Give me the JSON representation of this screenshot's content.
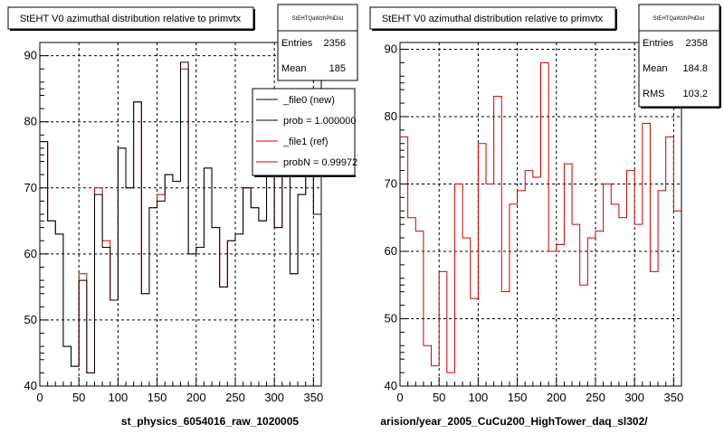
{
  "colors": {
    "histogram": "#cc0000",
    "reference": "#000000",
    "frame": "#000000",
    "background": "#ffffff"
  },
  "panels": [
    {
      "title": "StEHT V0 azimuthal distribution relative to primvtx",
      "footer": "st_physics_6054016_raw_1020005",
      "stats": {
        "name": "StEHTQaWzhPhiDist",
        "rows": [
          {
            "label": "Entries",
            "value": "2356"
          },
          {
            "label": "Mean",
            "value": "185"
          }
        ]
      },
      "legend": [
        {
          "label": "_file0 (new)",
          "color": "#000000"
        },
        {
          "label": "prob = 1.000000",
          "color": "#000000"
        },
        {
          "label": "_file1 (ref)",
          "color": "#cc0000"
        },
        {
          "label": "probN = 0.99972",
          "color": "#cc0000"
        }
      ]
    },
    {
      "title": "StEHT V0 azimuthal distribution relative to primvtx",
      "footer": "arision/year_2005_CuCu200_HighTower_daq_sl302/",
      "stats": {
        "name": "StEHTQaWzhPhiDist",
        "rows": [
          {
            "label": "Entries",
            "value": "2358"
          },
          {
            "label": "Mean",
            "value": "184.8"
          },
          {
            "label": "RMS",
            "value": "103.2"
          }
        ]
      },
      "legend": []
    }
  ],
  "chart_data": [
    {
      "type": "bar",
      "title": "StEHT V0 azimuthal distribution relative to primvtx",
      "xlabel": "st_physics_6054016_raw_1020005",
      "xlim": [
        0,
        360
      ],
      "ylim": [
        40,
        92
      ],
      "xticks": [
        0,
        50,
        100,
        150,
        200,
        250,
        300,
        350
      ],
      "yticks": [
        40,
        50,
        60,
        70,
        80,
        90
      ],
      "bin_width": 10,
      "series": [
        {
          "name": "_file1 (ref)",
          "color": "#cc0000",
          "values": [
            77,
            65,
            63,
            46,
            43,
            57,
            42,
            70,
            62,
            53,
            76,
            70,
            83,
            54,
            67,
            69,
            72,
            71,
            88,
            60,
            61,
            73,
            64,
            55,
            62,
            63,
            70,
            67,
            65,
            72,
            64,
            79,
            57,
            69,
            77,
            66
          ]
        },
        {
          "name": "_file0 (new)",
          "color": "#000000",
          "values": [
            77,
            65,
            63,
            46,
            43,
            56,
            42,
            69,
            61,
            53,
            76,
            70,
            83,
            54,
            67,
            68,
            72,
            71,
            89,
            60,
            61,
            73,
            64,
            55,
            62,
            63,
            70,
            67,
            65,
            72,
            64,
            79,
            57,
            69,
            77,
            66
          ]
        }
      ]
    },
    {
      "type": "bar",
      "title": "StEHT V0 azimuthal distribution relative to primvtx",
      "xlabel": "arision/year_2005_CuCu200_HighTower_daq_sl302/",
      "xlim": [
        0,
        360
      ],
      "ylim": [
        40,
        91
      ],
      "xticks": [
        0,
        50,
        100,
        150,
        200,
        250,
        300,
        350
      ],
      "yticks": [
        40,
        50,
        60,
        70,
        80,
        90
      ],
      "bin_width": 10,
      "series": [
        {
          "name": "",
          "color": "#cc0000",
          "values": [
            77,
            65,
            63,
            46,
            43,
            57,
            42,
            70,
            62,
            53,
            76,
            70,
            83,
            54,
            67,
            69,
            72,
            71,
            88,
            60,
            61,
            73,
            64,
            55,
            62,
            63,
            70,
            67,
            65,
            72,
            64,
            79,
            57,
            69,
            77,
            66
          ]
        }
      ]
    }
  ]
}
